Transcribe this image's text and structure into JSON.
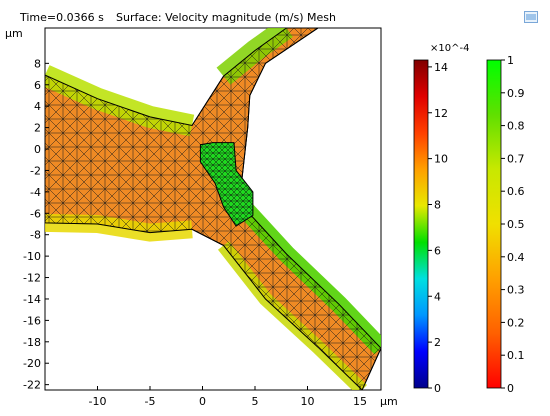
{
  "header": {
    "time_label": "Time=0.0366 s",
    "title": "Surface: Velocity magnitude (m/s) Mesh"
  },
  "units": {
    "y": "μm",
    "x": "μm"
  },
  "icons": {
    "toolbar": "image-export-icon"
  },
  "chart_data": {
    "type": "heatmap",
    "title": "Surface: Velocity magnitude (m/s) Mesh",
    "subtitle": "Time=0.0366 s",
    "xlabel": "μm",
    "ylabel": "μm",
    "xlim": [
      -15,
      17
    ],
    "ylim": [
      -22.5,
      11.3
    ],
    "x_ticks": [
      -10,
      -5,
      0,
      5,
      10,
      15
    ],
    "y_ticks": [
      8,
      6,
      4,
      2,
      0,
      -2,
      -4,
      -6,
      -8,
      -10,
      -12,
      -14,
      -16,
      -18,
      -20,
      -22
    ],
    "channel": {
      "left_arm_upper": [
        [
          -15,
          6.9
        ],
        [
          -10,
          4.7
        ],
        [
          -5,
          3.0
        ],
        [
          -1,
          2.2
        ]
      ],
      "left_arm_lower": [
        [
          -15,
          -6.9
        ],
        [
          -10,
          -7.0
        ],
        [
          -5,
          -7.8
        ],
        [
          -1,
          -7.5
        ]
      ],
      "upper_right_arm_left": [
        [
          2,
          6.8
        ],
        [
          5,
          9.2
        ],
        [
          8,
          11.3
        ]
      ],
      "upper_right_arm_right": [
        [
          11,
          11.3
        ],
        [
          6,
          8.0
        ],
        [
          4.5,
          5.0
        ],
        [
          4.3,
          2.0
        ]
      ],
      "lower_right_arm_left": [
        [
          2,
          -9.0
        ],
        [
          6,
          -14.0
        ],
        [
          11,
          -18.5
        ],
        [
          15.2,
          -22.5
        ]
      ],
      "lower_right_arm_right": [
        [
          3.5,
          -5.0
        ],
        [
          8,
          -9.8
        ],
        [
          13,
          -14.5
        ],
        [
          17,
          -18.6
        ]
      ]
    },
    "cell": {
      "outline": [
        [
          1,
          0.6
        ],
        [
          3,
          0.6
        ],
        [
          3.2,
          -2.0
        ],
        [
          4.8,
          -4.0
        ],
        [
          4.8,
          -6.2
        ],
        [
          3.2,
          -7.2
        ],
        [
          2.0,
          -5.4
        ],
        [
          1.2,
          -3.2
        ],
        [
          -0.2,
          -1.2
        ],
        [
          -0.2,
          0.4
        ]
      ]
    },
    "colorbar_velocity": {
      "scale_label": "×10^-4",
      "ticks": [
        0,
        2,
        4,
        6,
        8,
        10,
        12,
        14
      ],
      "range": [
        0,
        14.3
      ],
      "colors": [
        "#00008b",
        "#0000ff",
        "#0096ff",
        "#00e0e0",
        "#00e000",
        "#e8e800",
        "#ffa000",
        "#ff4000",
        "#e00000",
        "#800000"
      ]
    },
    "colorbar_mesh": {
      "ticks": [
        0,
        0.1,
        0.2,
        0.3,
        0.4,
        0.5,
        0.6,
        0.7,
        0.8,
        0.9,
        1
      ],
      "range": [
        0,
        1
      ],
      "colors": [
        "#ff0000",
        "#ff6000",
        "#ffa000",
        "#f0e000",
        "#c8e800",
        "#60e000",
        "#00ff00"
      ]
    }
  }
}
